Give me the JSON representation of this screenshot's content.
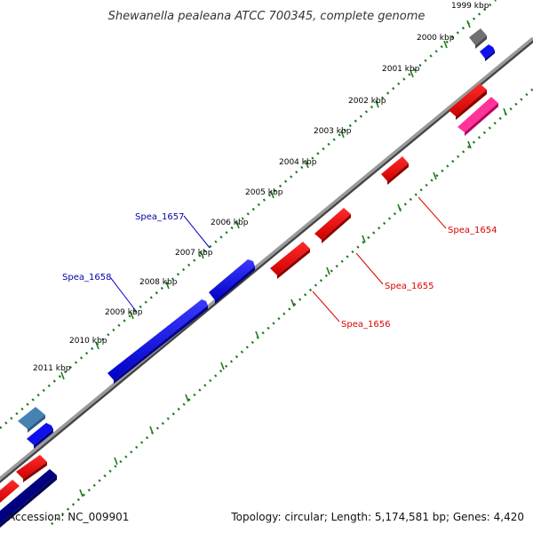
{
  "title": "Shewanella pealeana ATCC 700345, complete genome",
  "footer": {
    "accession": "Accession: NC_009901",
    "summary": "Topology: circular; Length: 5,174,581 bp; Genes: 4,420"
  },
  "colors": {
    "backbone": "#8c8c8c",
    "tick": "#1a7a1a",
    "forward_gene": "#0000ee",
    "reverse_gene": "#ee0000",
    "forward_label": "#0000aa",
    "reverse_label": "#dd0000",
    "grey_gene": "#707070",
    "pink_gene": "#ff3399",
    "steelblue_gene": "#4682b4",
    "navy_gene": "#000080"
  },
  "ticks": [
    "1999 kbp",
    "2000 kbp",
    "2001 kbp",
    "2002 kbp",
    "2003 kbp",
    "2004 kbp",
    "2005 kbp",
    "2006 kbp",
    "2007 kbp",
    "2008 kbp",
    "2009 kbp",
    "2010 kbp",
    "2011 kbp"
  ],
  "gene_labels": {
    "forward": [
      "Spea_1657",
      "Spea_1658"
    ],
    "reverse": [
      "Spea_1654",
      "Spea_1655",
      "Spea_1656"
    ]
  }
}
